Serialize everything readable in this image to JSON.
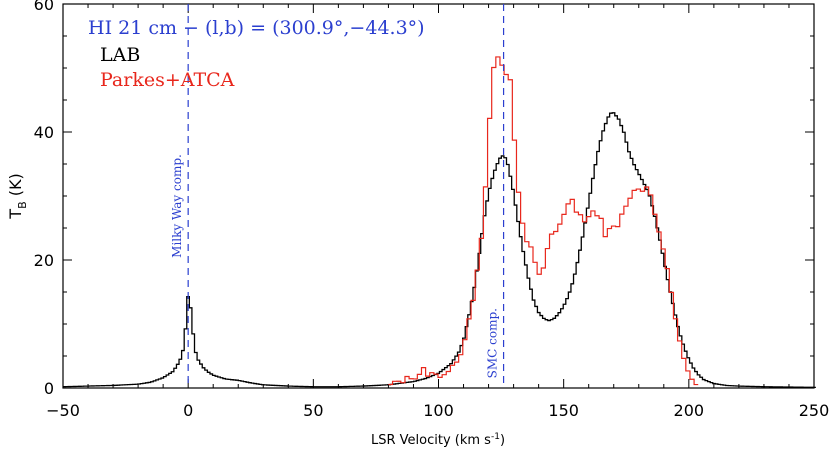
{
  "chart_data": {
    "type": "line",
    "title": "HI 21 cm − (l,b) = (300.9°,−44.3°)",
    "xlabel": "LSR Velocity (km s",
    "xlabel_sup": "-1",
    "xlabel_end": ")",
    "ylabel": "T",
    "ylabel_sub": "B",
    "ylabel_end": " (K)",
    "xlim": [
      -50,
      250
    ],
    "ylim": [
      0,
      60
    ],
    "x_ticks": [
      -50,
      0,
      50,
      100,
      150,
      200,
      250
    ],
    "x_tick_labels": [
      "−50",
      "0",
      "50",
      "100",
      "150",
      "200",
      "250"
    ],
    "y_ticks": [
      0,
      20,
      40,
      60
    ],
    "y_tick_labels": [
      "0",
      "20",
      "40",
      "60"
    ],
    "colors": {
      "lab": "#000000",
      "parkes": "#e8271c",
      "annotation": "#2b3fcf"
    },
    "legend": [
      "LAB",
      "Parkes+ATCA"
    ],
    "series": [
      {
        "name": "LAB",
        "color": "#000000",
        "anchors": [
          [
            -50,
            0.2
          ],
          [
            -40,
            0.3
          ],
          [
            -30,
            0.4
          ],
          [
            -20,
            0.6
          ],
          [
            -15,
            0.9
          ],
          [
            -10,
            1.6
          ],
          [
            -6,
            2.6
          ],
          [
            -4,
            3.8
          ],
          [
            -3,
            4.6
          ],
          [
            -2,
            6.0
          ],
          [
            -1,
            9.5
          ],
          [
            0,
            14.5
          ],
          [
            1,
            12.5
          ],
          [
            2,
            8.5
          ],
          [
            3,
            5.6
          ],
          [
            4,
            4.4
          ],
          [
            6,
            3.2
          ],
          [
            8,
            2.5
          ],
          [
            10,
            2.0
          ],
          [
            15,
            1.4
          ],
          [
            20,
            1.2
          ],
          [
            25,
            0.8
          ],
          [
            30,
            0.5
          ],
          [
            40,
            0.3
          ],
          [
            50,
            0.2
          ],
          [
            60,
            0.2
          ],
          [
            70,
            0.3
          ],
          [
            80,
            0.5
          ],
          [
            90,
            1.0
          ],
          [
            95,
            1.5
          ],
          [
            100,
            2.3
          ],
          [
            105,
            3.8
          ],
          [
            108,
            5.5
          ],
          [
            110,
            7.5
          ],
          [
            112,
            11
          ],
          [
            114,
            15
          ],
          [
            116,
            20
          ],
          [
            118,
            26
          ],
          [
            120,
            30.5
          ],
          [
            122,
            33.5
          ],
          [
            124,
            35.5
          ],
          [
            125,
            36.2
          ],
          [
            126,
            36.3
          ],
          [
            127,
            35.8
          ],
          [
            128,
            34.5
          ],
          [
            130,
            30.5
          ],
          [
            132,
            25.5
          ],
          [
            134,
            21
          ],
          [
            136,
            17
          ],
          [
            138,
            13.7
          ],
          [
            140,
            11.8
          ],
          [
            142,
            10.9
          ],
          [
            144,
            10.5
          ],
          [
            146,
            10.8
          ],
          [
            148,
            11.6
          ],
          [
            150,
            12.8
          ],
          [
            152,
            14.5
          ],
          [
            154,
            17
          ],
          [
            156,
            20.5
          ],
          [
            158,
            24.5
          ],
          [
            160,
            29
          ],
          [
            162,
            33.5
          ],
          [
            164,
            37.5
          ],
          [
            166,
            40.5
          ],
          [
            168,
            42.5
          ],
          [
            169,
            43
          ],
          [
            170,
            43
          ],
          [
            172,
            42
          ],
          [
            174,
            40
          ],
          [
            176,
            37
          ],
          [
            178,
            35
          ],
          [
            180,
            33.5
          ],
          [
            182,
            32
          ],
          [
            184,
            30.5
          ],
          [
            186,
            27.5
          ],
          [
            188,
            24
          ],
          [
            190,
            20
          ],
          [
            192,
            16
          ],
          [
            194,
            12.5
          ],
          [
            196,
            9
          ],
          [
            198,
            6.5
          ],
          [
            200,
            4.5
          ],
          [
            202,
            3
          ],
          [
            204,
            2
          ],
          [
            206,
            1.3
          ],
          [
            210,
            0.7
          ],
          [
            215,
            0.4
          ],
          [
            220,
            0.3
          ],
          [
            230,
            0.2
          ],
          [
            250,
            0.1
          ]
        ]
      },
      {
        "name": "Parkes+ATCA",
        "color": "#e8271c",
        "anchors": [
          [
            80,
            0.3
          ],
          [
            83,
            1.2
          ],
          [
            86,
            0.8
          ],
          [
            88,
            2.2
          ],
          [
            90,
            0.8
          ],
          [
            92,
            2.5
          ],
          [
            93,
            1.5
          ],
          [
            94,
            3.2
          ],
          [
            96,
            1.6
          ],
          [
            98,
            2.8
          ],
          [
            100,
            1.5
          ],
          [
            102,
            2.0
          ],
          [
            104,
            2.6
          ],
          [
            106,
            3.8
          ],
          [
            108,
            4.2
          ],
          [
            110,
            6.5
          ],
          [
            112,
            10.5
          ],
          [
            114,
            14
          ],
          [
            116,
            20
          ],
          [
            118,
            26
          ],
          [
            120,
            40
          ],
          [
            122,
            50
          ],
          [
            124,
            52
          ],
          [
            125,
            52.5
          ],
          [
            126,
            47
          ],
          [
            127,
            49
          ],
          [
            129,
            48
          ],
          [
            131,
            34
          ],
          [
            133,
            27
          ],
          [
            135,
            23
          ],
          [
            137,
            22
          ],
          [
            139,
            19
          ],
          [
            141,
            17
          ],
          [
            143,
            21
          ],
          [
            145,
            24
          ],
          [
            147,
            24.5
          ],
          [
            149,
            26
          ],
          [
            151,
            28
          ],
          [
            153,
            30
          ],
          [
            155,
            27.5
          ],
          [
            157,
            27
          ],
          [
            159,
            25.5
          ],
          [
            161,
            28
          ],
          [
            163,
            27
          ],
          [
            165,
            26.5
          ],
          [
            167,
            23
          ],
          [
            169,
            26
          ],
          [
            171,
            24.5
          ],
          [
            173,
            27
          ],
          [
            175,
            28.5
          ],
          [
            177,
            30
          ],
          [
            179,
            31.5
          ],
          [
            181,
            30.5
          ],
          [
            183,
            31.5
          ],
          [
            185,
            30
          ],
          [
            187,
            26
          ],
          [
            189,
            23
          ],
          [
            191,
            19.5
          ],
          [
            193,
            15
          ],
          [
            195,
            10
          ],
          [
            197,
            6
          ],
          [
            199,
            3.2
          ],
          [
            201,
            1.5
          ],
          [
            203,
            0.5
          ]
        ]
      }
    ],
    "annotations": [
      {
        "label": "Milky Way comp.",
        "x": 0
      },
      {
        "label": "SMC comp.",
        "x": 126
      }
    ]
  }
}
